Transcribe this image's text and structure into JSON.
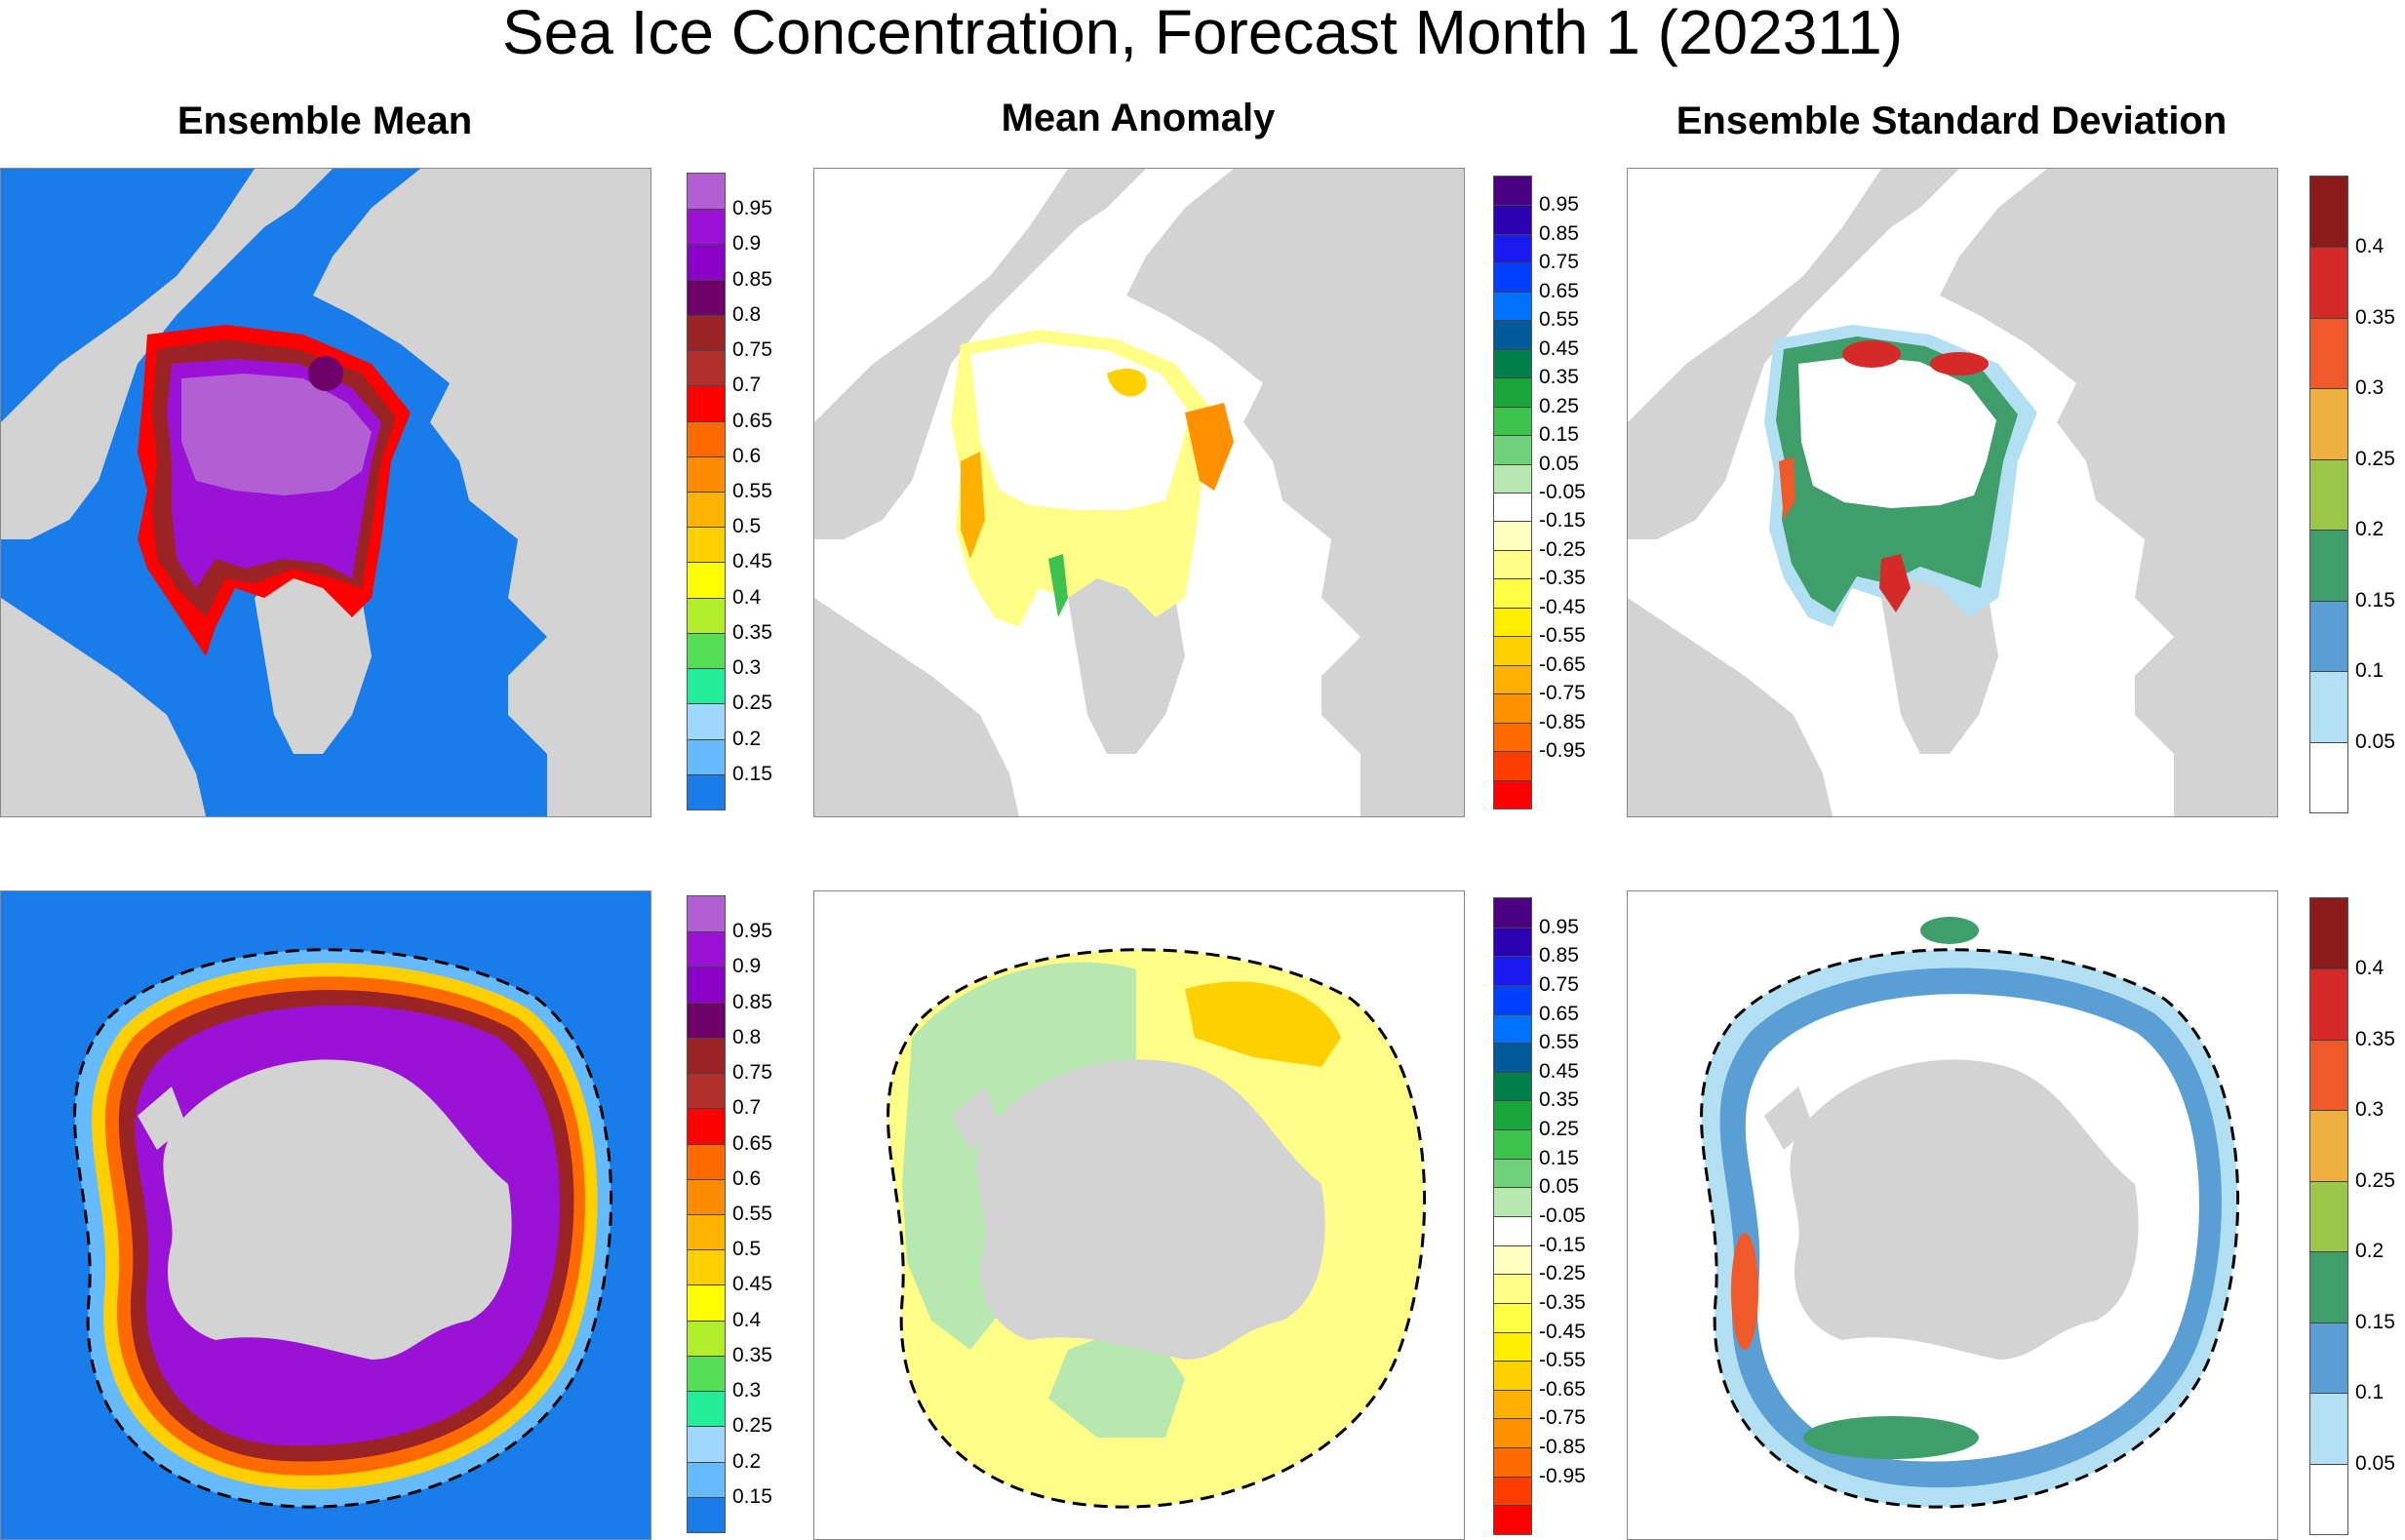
{
  "title": "Sea Ice Concentration, Forecast Month 1 (202311)",
  "columns": [
    {
      "title": "Ensemble Mean"
    },
    {
      "title": "Mean Anomaly"
    },
    {
      "title": "Ensemble Standard Deviation"
    }
  ],
  "colorbars": {
    "mean": {
      "labels": [
        "0.95",
        "0.9",
        "0.85",
        "0.8",
        "0.75",
        "0.7",
        "0.65",
        "0.6",
        "0.55",
        "0.5",
        "0.45",
        "0.4",
        "0.35",
        "0.3",
        "0.25",
        "0.2",
        "0.15"
      ],
      "colors": [
        "#b35fd4",
        "#9a12d6",
        "#8a00c7",
        "#6e0069",
        "#9a2323",
        "#b02f2a",
        "#ff0000",
        "#ff6a00",
        "#ff8c00",
        "#ffb300",
        "#ffd000",
        "#ffff00",
        "#b2ee2b",
        "#55dd55",
        "#22ee99",
        "#9ed8ff",
        "#66bbff",
        "#1a7ce8"
      ]
    },
    "anomaly": {
      "labels": [
        "0.95",
        "0.85",
        "0.75",
        "0.65",
        "0.55",
        "0.45",
        "0.35",
        "0.25",
        "0.15",
        "0.05",
        "-0.05",
        "-0.15",
        "-0.25",
        "-0.35",
        "-0.45",
        "-0.55",
        "-0.65",
        "-0.75",
        "-0.85",
        "-0.95"
      ],
      "colors": [
        "#4b0082",
        "#2a00b0",
        "#1a1aee",
        "#0040ff",
        "#0070ff",
        "#005a9a",
        "#007f4b",
        "#1aa53c",
        "#3cc24d",
        "#6fd27a",
        "#b6e8b0",
        "#ffffff",
        "#ffffc0",
        "#ffff88",
        "#ffff44",
        "#ffee00",
        "#ffd000",
        "#ffb000",
        "#ff9000",
        "#ff6a00",
        "#ff3c00",
        "#ff0000"
      ]
    },
    "stdev": {
      "labels": [
        "0.4",
        "0.35",
        "0.3",
        "0.25",
        "0.2",
        "0.15",
        "0.1",
        "0.05"
      ],
      "colors": [
        "#8b1a1a",
        "#d42a2a",
        "#ee5a2a",
        "#f0b040",
        "#9bc84a",
        "#3f9e6a",
        "#5a9fd4",
        "#b3dff3",
        "#ffffff"
      ]
    }
  }
}
